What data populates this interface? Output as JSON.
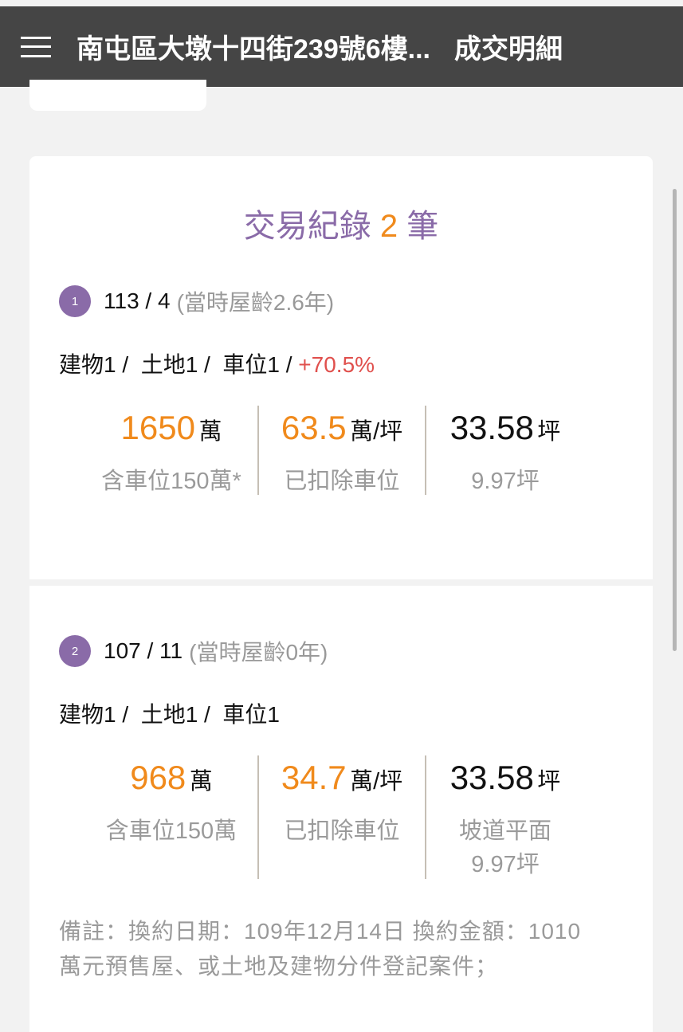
{
  "header": {
    "menu_icon": "hamburger-icon",
    "title": "南屯區大墩十四街239號6樓...",
    "subtitle": "成交明細"
  },
  "summary": {
    "label_prefix": "交易紀錄",
    "count": "2",
    "label_suffix": "筆"
  },
  "records": [
    {
      "index": "1",
      "date": "113 / 4",
      "age": "(當時屋齡2.6年)",
      "composition": "建物1 /  土地1 /  車位1 / ",
      "change": "+70.5%",
      "total": "1650",
      "total_unit": "萬",
      "total_note": "含車位150萬*",
      "unit_price": "63.5",
      "unit_price_unit": "萬/坪",
      "unit_price_note": "已扣除車位",
      "area": "33.58",
      "area_unit": "坪",
      "parking_type": "",
      "parking_area": "9.97坪"
    },
    {
      "index": "2",
      "date": "107 / 11",
      "age": "(當時屋齡0年)",
      "composition": "建物1 /  土地1 /  車位1",
      "change": "",
      "total": "968",
      "total_unit": "萬",
      "total_note": "含車位150萬",
      "unit_price": "34.7",
      "unit_price_unit": "萬/坪",
      "unit_price_note": "已扣除車位",
      "area": "33.58",
      "area_unit": "坪",
      "parking_type": "坡道平面",
      "parking_area": "9.97坪",
      "note": "備註：換約日期：109年12月14日 換約金額：1010萬元預售屋、或土地及建物分件登記案件；"
    }
  ],
  "colors": {
    "accent_purple": "#8a6ba8",
    "price_orange": "#f08a1c",
    "change_red": "#e0504d",
    "header_bg": "#454545"
  }
}
